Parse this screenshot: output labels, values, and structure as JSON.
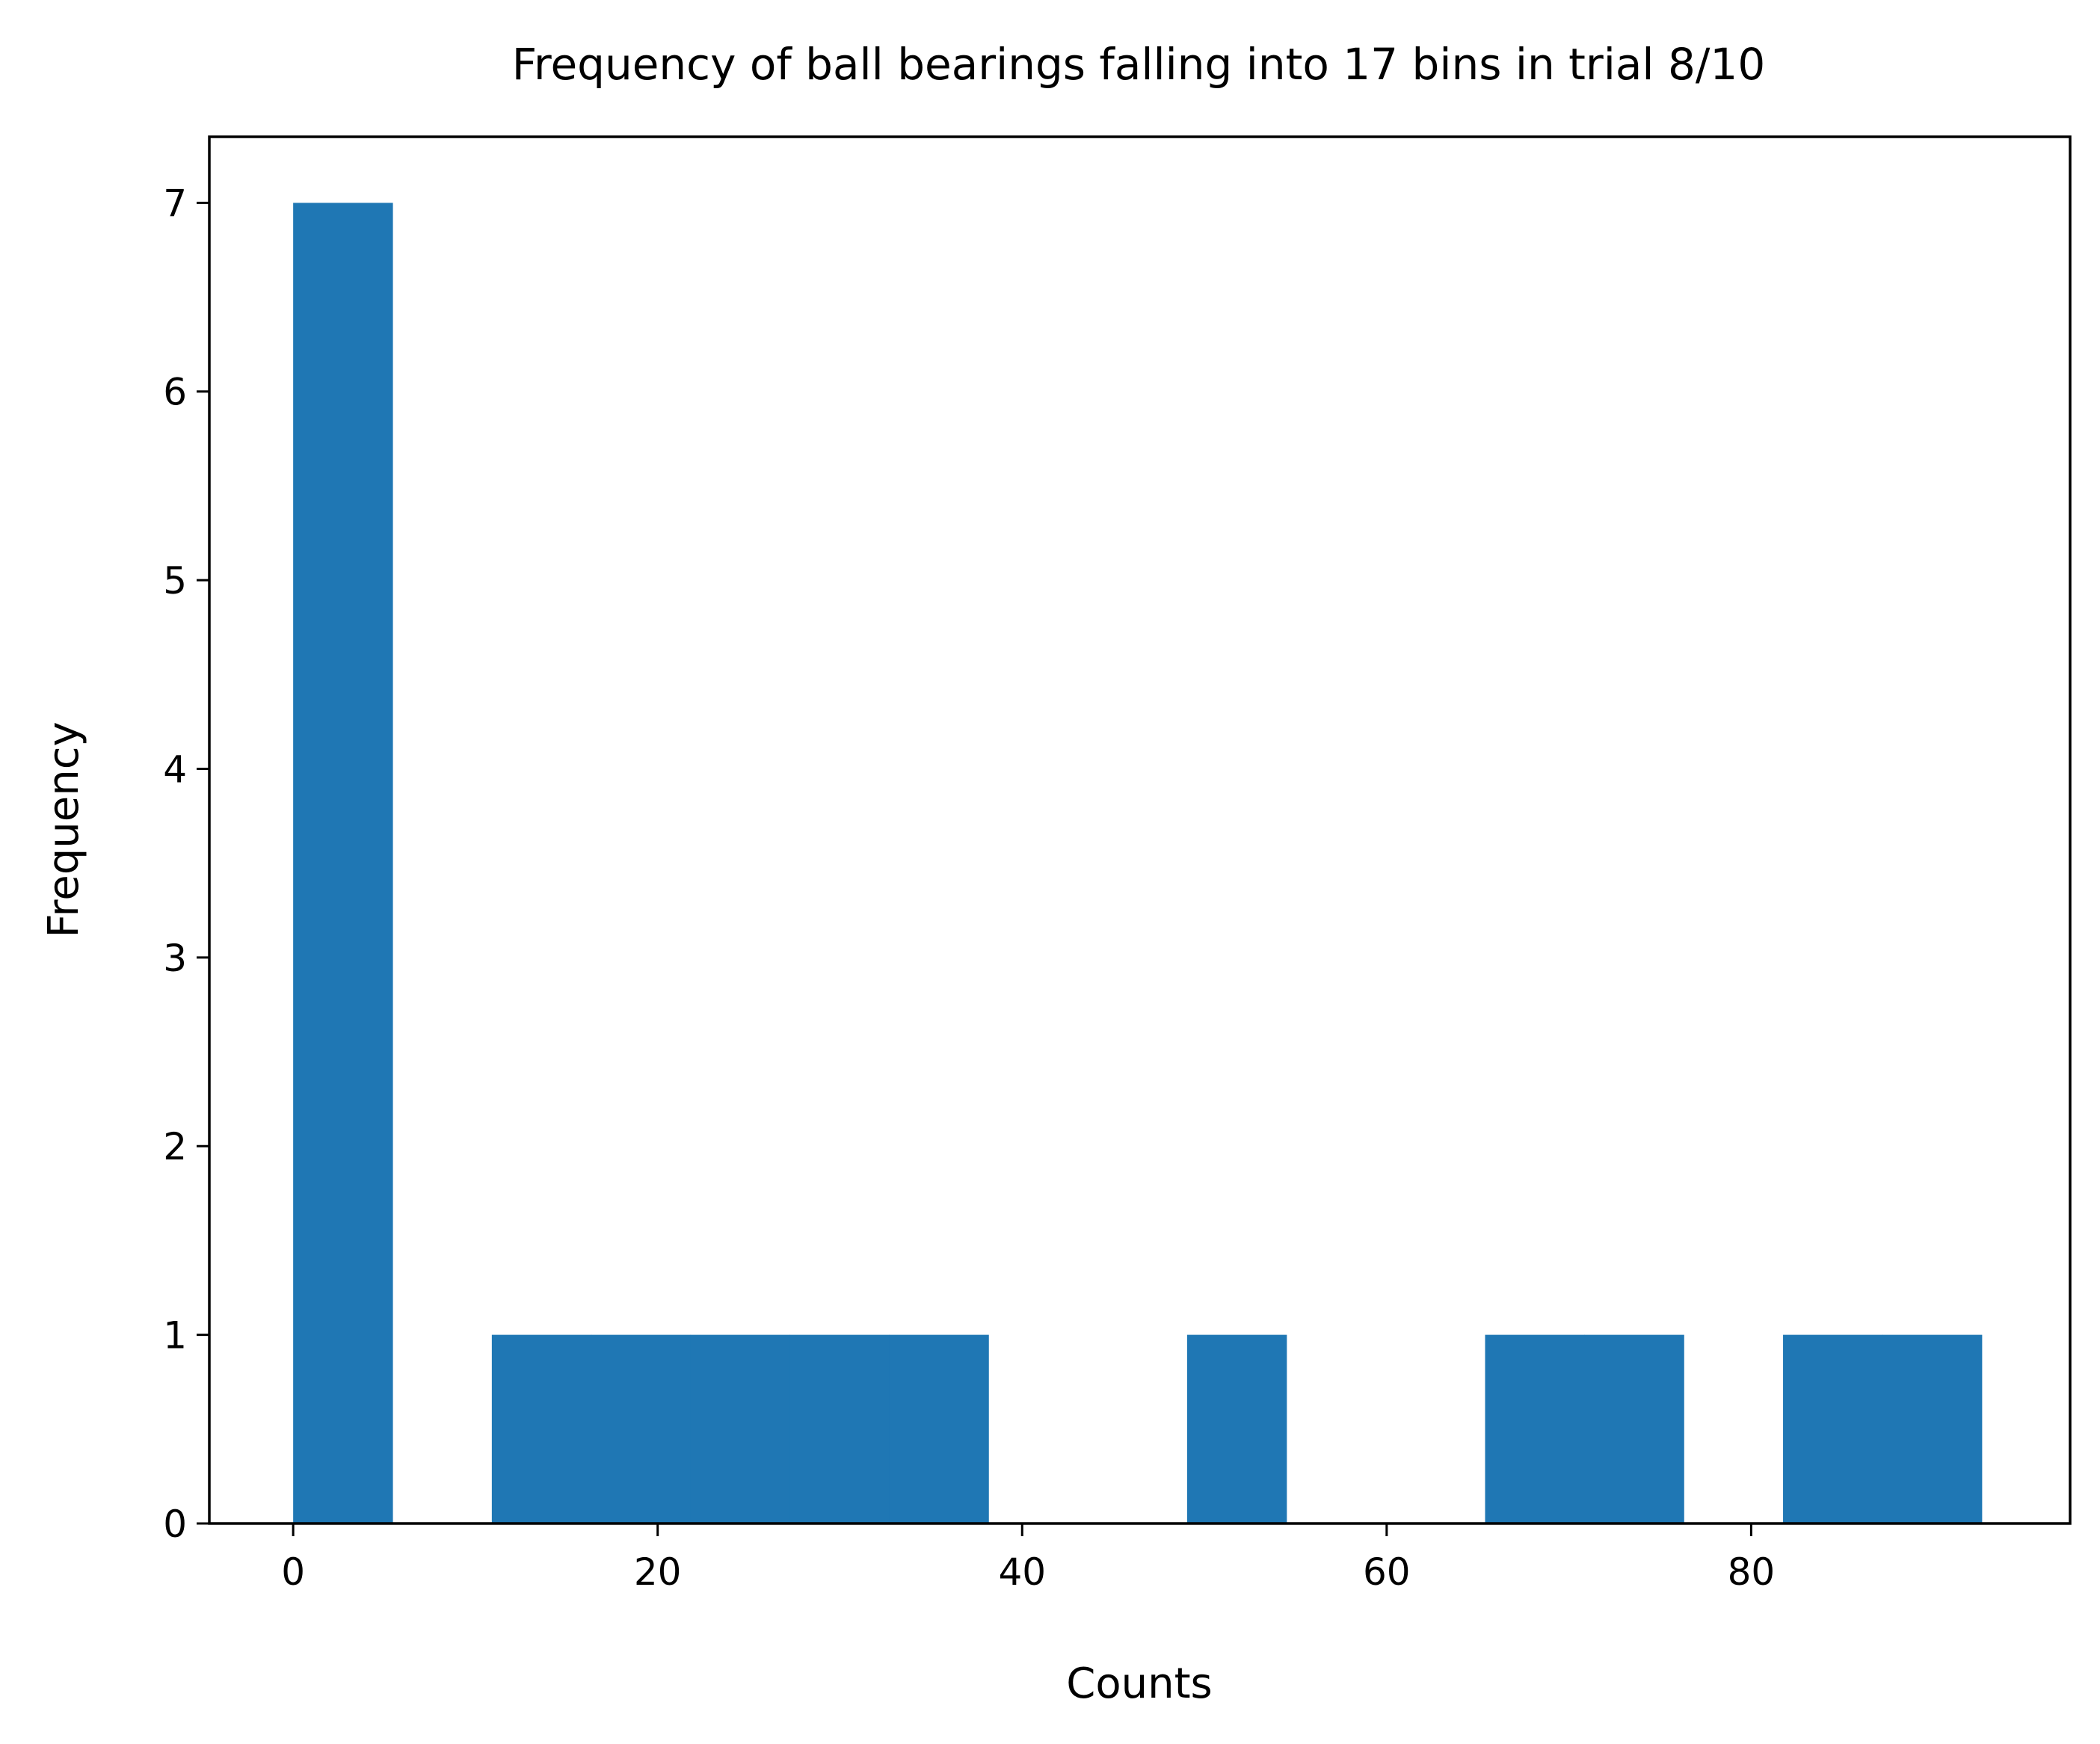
{
  "chart_data": {
    "type": "bar",
    "title": "Frequency of ball bearings falling into 17 bins in trial 8/10",
    "xlabel": "Counts",
    "ylabel": "Frequency",
    "xlim": [
      -4.6,
      97.5
    ],
    "ylim": [
      0,
      7.35
    ],
    "grid": false,
    "legend": "none",
    "bar_color": "#1f77b4",
    "bins": [
      {
        "x0": 0.0,
        "x1": 5.45,
        "count": 7
      },
      {
        "x0": 5.45,
        "x1": 10.9,
        "count": 0
      },
      {
        "x0": 10.9,
        "x1": 16.35,
        "count": 1
      },
      {
        "x0": 16.35,
        "x1": 21.8,
        "count": 1
      },
      {
        "x0": 21.8,
        "x1": 27.25,
        "count": 1
      },
      {
        "x0": 27.25,
        "x1": 32.7,
        "count": 1
      },
      {
        "x0": 32.7,
        "x1": 38.15,
        "count": 1
      },
      {
        "x0": 38.15,
        "x1": 43.6,
        "count": 0
      },
      {
        "x0": 43.6,
        "x1": 49.05,
        "count": 0
      },
      {
        "x0": 49.05,
        "x1": 54.5,
        "count": 1
      },
      {
        "x0": 54.5,
        "x1": 59.95,
        "count": 0
      },
      {
        "x0": 59.95,
        "x1": 65.4,
        "count": 0
      },
      {
        "x0": 65.4,
        "x1": 70.85,
        "count": 1
      },
      {
        "x0": 70.85,
        "x1": 76.3,
        "count": 1
      },
      {
        "x0": 76.3,
        "x1": 81.75,
        "count": 0
      },
      {
        "x0": 81.75,
        "x1": 87.2,
        "count": 1
      },
      {
        "x0": 87.2,
        "x1": 92.65,
        "count": 1
      }
    ],
    "x_ticks": [
      0,
      20,
      40,
      60,
      80
    ],
    "x_tick_labels": [
      "0",
      "20",
      "40",
      "60",
      "80"
    ],
    "y_ticks": [
      0,
      1,
      2,
      3,
      4,
      5,
      6,
      7
    ],
    "y_tick_labels": [
      "0",
      "1",
      "2",
      "3",
      "4",
      "5",
      "6",
      "7"
    ]
  }
}
